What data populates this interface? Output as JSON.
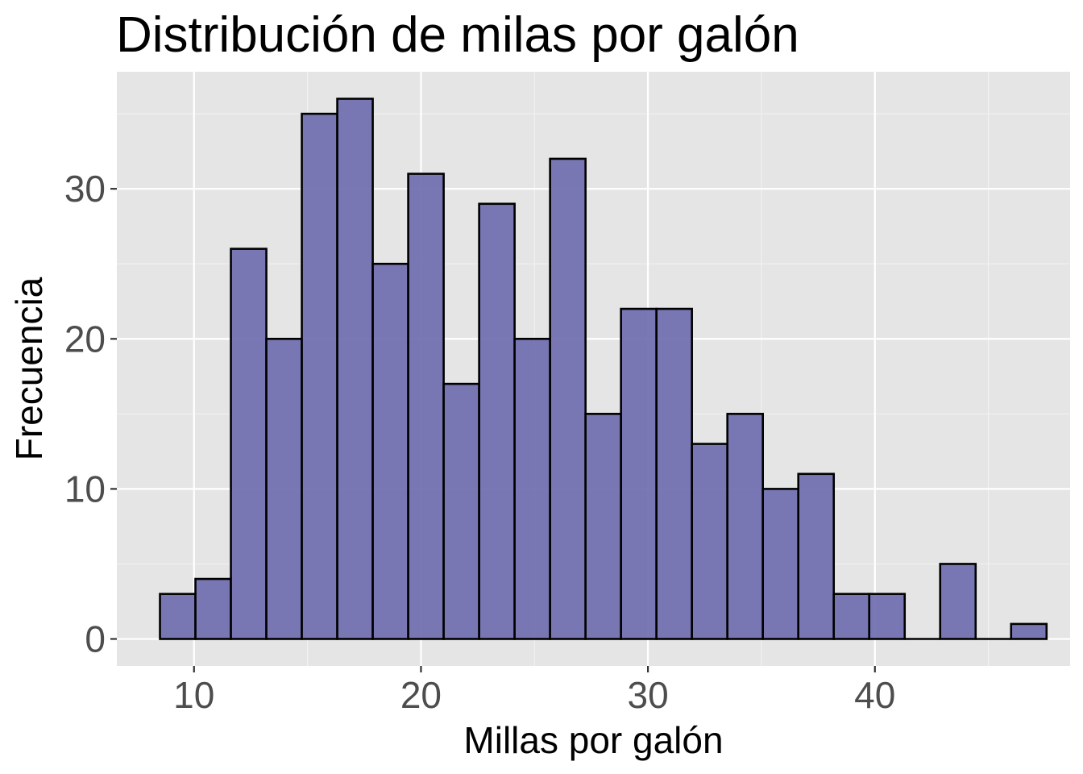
{
  "chart_data": {
    "type": "bar",
    "title": "Distribución de milas por galón",
    "xlabel": "Millas por galón",
    "ylabel": "Frecuencia",
    "bin_width": 1.5625,
    "bins_start": 8.5,
    "values": [
      3,
      4,
      26,
      20,
      35,
      36,
      25,
      31,
      17,
      29,
      20,
      32,
      15,
      22,
      22,
      13,
      15,
      10,
      11,
      3,
      3,
      0,
      5,
      0,
      1
    ],
    "xlim": [
      6.6,
      48.6
    ],
    "ylim": [
      -1.8,
      37.8
    ],
    "xticks": [
      10,
      20,
      30,
      40
    ],
    "yticks": [
      0,
      10,
      20,
      30
    ],
    "grid": true,
    "fill_color": "#6b6aad",
    "edge_color": "#000000",
    "panel_color": "#e5e5e5"
  }
}
